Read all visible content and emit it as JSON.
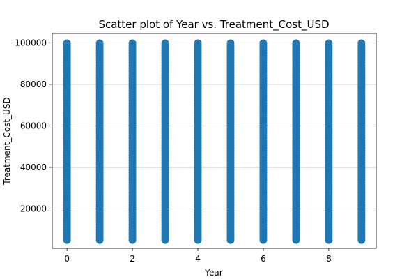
{
  "chart_data": {
    "type": "scatter",
    "title": "Scatter plot of Year vs. Treatment_Cost_USD",
    "xlabel": "Year",
    "ylabel": "Treatment_Cost_USD",
    "xlim": [
      -0.45,
      9.45
    ],
    "ylim": [
      1000,
      104500
    ],
    "xticks": [
      0,
      2,
      4,
      6,
      8
    ],
    "xtick_labels": [
      "0",
      "2",
      "4",
      "6",
      "8"
    ],
    "yticks": [
      20000,
      40000,
      60000,
      80000,
      100000
    ],
    "ytick_labels": [
      "20000",
      "40000",
      "60000",
      "80000",
      "100000"
    ],
    "grid": "y-major",
    "marker_color": "#1f77b4",
    "series": [
      {
        "x_categories": [
          0,
          1,
          2,
          3,
          4,
          5,
          6,
          7,
          8,
          9
        ],
        "y_range_per_x": [
          5000,
          100000
        ],
        "description_points": [
          {
            "x": 0,
            "y_min": 5000,
            "y_max": 100000
          },
          {
            "x": 1,
            "y_min": 5000,
            "y_max": 100000
          },
          {
            "x": 2,
            "y_min": 5000,
            "y_max": 100000
          },
          {
            "x": 3,
            "y_min": 5000,
            "y_max": 100000
          },
          {
            "x": 4,
            "y_min": 5000,
            "y_max": 100000
          },
          {
            "x": 5,
            "y_min": 5000,
            "y_max": 100000
          },
          {
            "x": 6,
            "y_min": 5000,
            "y_max": 100000
          },
          {
            "x": 7,
            "y_min": 5000,
            "y_max": 100000
          },
          {
            "x": 8,
            "y_min": 5000,
            "y_max": 100000
          },
          {
            "x": 9,
            "y_min": 5000,
            "y_max": 100000
          }
        ]
      }
    ]
  }
}
